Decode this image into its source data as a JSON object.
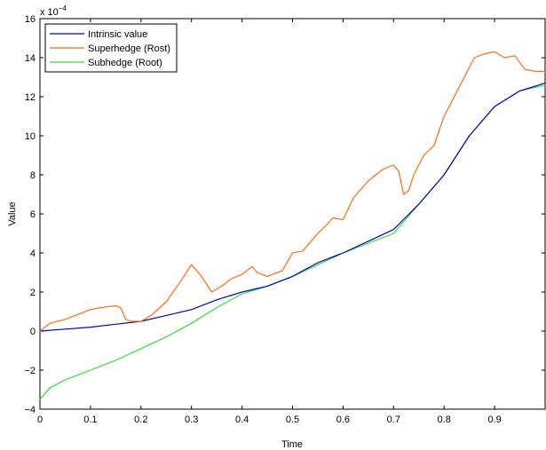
{
  "chart_data": {
    "type": "line",
    "xlabel": "Time",
    "ylabel": "Value",
    "y_multiplier_label": "x 10",
    "y_multiplier_exponent": "−4",
    "xlim": [
      0,
      1
    ],
    "ylim": [
      -4,
      16
    ],
    "x_ticks": [
      0,
      0.1,
      0.2,
      0.3,
      0.4,
      0.5,
      0.6,
      0.7,
      0.8,
      0.9
    ],
    "x_tick_labels": [
      "0",
      "0.1",
      "0.2",
      "0.3",
      "0.4",
      "0.5",
      "0.6",
      "0.7",
      "0.8",
      "0.9"
    ],
    "y_ticks": [
      -4,
      -2,
      0,
      2,
      4,
      6,
      8,
      10,
      12,
      14,
      16
    ],
    "y_tick_labels": [
      "−4",
      "−2",
      "0",
      "2",
      "4",
      "6",
      "8",
      "10",
      "12",
      "14",
      "16"
    ],
    "grid": false,
    "legend_position": "top-left",
    "series": [
      {
        "name": "Intrinsic value",
        "color": "#0000cc",
        "x": [
          0,
          0.05,
          0.1,
          0.15,
          0.2,
          0.25,
          0.3,
          0.35,
          0.4,
          0.45,
          0.5,
          0.55,
          0.6,
          0.65,
          0.7,
          0.75,
          0.8,
          0.85,
          0.9,
          0.95,
          1.0
        ],
        "y": [
          0,
          0.1,
          0.2,
          0.35,
          0.5,
          0.8,
          1.1,
          1.6,
          2.0,
          2.3,
          2.8,
          3.5,
          4.0,
          4.6,
          5.2,
          6.5,
          8.0,
          10.0,
          11.5,
          12.3,
          12.7
        ]
      },
      {
        "name": "Superhedge (Rost)",
        "color": "#ff6a13",
        "x": [
          0,
          0.02,
          0.05,
          0.08,
          0.1,
          0.12,
          0.15,
          0.16,
          0.17,
          0.18,
          0.19,
          0.2,
          0.22,
          0.25,
          0.28,
          0.3,
          0.32,
          0.34,
          0.36,
          0.38,
          0.4,
          0.42,
          0.43,
          0.45,
          0.48,
          0.5,
          0.52,
          0.55,
          0.57,
          0.58,
          0.6,
          0.62,
          0.65,
          0.68,
          0.7,
          0.71,
          0.72,
          0.73,
          0.74,
          0.76,
          0.78,
          0.8,
          0.82,
          0.84,
          0.86,
          0.88,
          0.9,
          0.92,
          0.94,
          0.96,
          0.98,
          1.0
        ],
        "y": [
          0,
          0.4,
          0.6,
          0.9,
          1.1,
          1.2,
          1.3,
          1.2,
          0.6,
          0.5,
          0.5,
          0.5,
          0.8,
          1.5,
          2.6,
          3.4,
          2.8,
          2.0,
          2.3,
          2.7,
          2.9,
          3.3,
          3.0,
          2.8,
          3.1,
          4.0,
          4.1,
          5.0,
          5.5,
          5.8,
          5.7,
          6.8,
          7.7,
          8.3,
          8.5,
          8.2,
          7.0,
          7.2,
          8.0,
          9.0,
          9.5,
          11.0,
          12.0,
          13.0,
          14.0,
          14.2,
          14.3,
          14.0,
          14.1,
          13.4,
          13.3,
          13.3
        ]
      },
      {
        "name": "Subhedge (Root)",
        "color": "#33dd33",
        "x": [
          0,
          0.02,
          0.05,
          0.08,
          0.1,
          0.15,
          0.2,
          0.25,
          0.3,
          0.35,
          0.4,
          0.45,
          0.5,
          0.55,
          0.6,
          0.65,
          0.7,
          0.75,
          0.8,
          0.85,
          0.9,
          0.95,
          1.0
        ],
        "y": [
          -3.5,
          -2.9,
          -2.5,
          -2.2,
          -2.0,
          -1.5,
          -0.9,
          -0.3,
          0.4,
          1.2,
          1.9,
          2.3,
          2.8,
          3.4,
          4.0,
          4.5,
          5.0,
          6.5,
          8.0,
          10.0,
          11.5,
          12.3,
          12.6
        ]
      }
    ]
  }
}
